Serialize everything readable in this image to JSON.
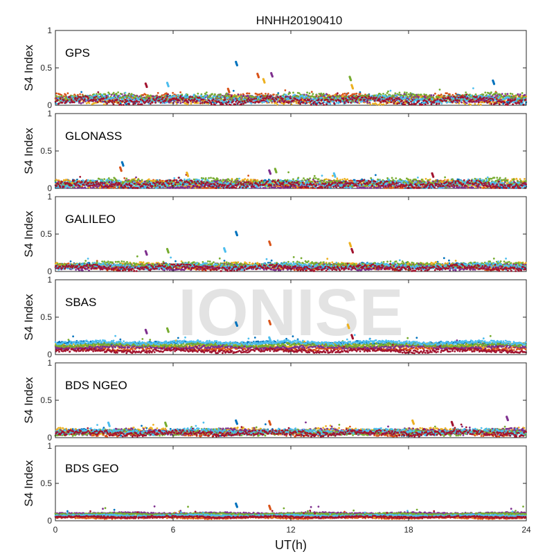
{
  "figure": {
    "title": "HNHH20190410",
    "xlabel": "UT(h)",
    "ylabel": "S4 Index",
    "watermark": "IONISE"
  },
  "chart_data": {
    "type": "scatter",
    "title": "HNHH20190410",
    "xlabel": "UT(h)",
    "ylabel": "S4 Index",
    "xlim": [
      0,
      24
    ],
    "ylim": [
      0,
      1
    ],
    "xticks": [
      0,
      6,
      12,
      18,
      24
    ],
    "yticks": [
      0,
      0.5,
      1
    ],
    "grid": false,
    "colors": [
      "#0072BD",
      "#D95319",
      "#EDB120",
      "#7E2F8E",
      "#77AC30",
      "#4DBEEE",
      "#A2142F"
    ],
    "panels": [
      {
        "label": "GPS",
        "baselines": [
          0.08,
          0.1,
          0.07,
          0.09,
          0.11,
          0.08,
          0.06
        ],
        "noise": 0.04,
        "spikes": [
          [
            9.2,
            0.58
          ],
          [
            10.3,
            0.42
          ],
          [
            10.6,
            0.35
          ],
          [
            11.0,
            0.43
          ],
          [
            15.0,
            0.38
          ],
          [
            5.7,
            0.3
          ],
          [
            4.6,
            0.29
          ],
          [
            22.3,
            0.33
          ],
          [
            8.8,
            0.22
          ],
          [
            15.1,
            0.27
          ]
        ]
      },
      {
        "label": "GLONASS",
        "baselines": [
          0.06,
          0.05,
          0.07,
          0.05,
          0.08,
          0.06,
          0.05
        ],
        "noise": 0.04,
        "spikes": [
          [
            3.4,
            0.35
          ],
          [
            3.3,
            0.28
          ],
          [
            6.7,
            0.21
          ],
          [
            10.9,
            0.24
          ],
          [
            11.2,
            0.26
          ],
          [
            14.2,
            0.2
          ],
          [
            19.2,
            0.2
          ]
        ]
      },
      {
        "label": "GALILEO",
        "baselines": [
          0.07,
          0.06,
          0.08,
          0.06,
          0.09,
          0.07,
          0.05
        ],
        "noise": 0.03,
        "spikes": [
          [
            9.2,
            0.53
          ],
          [
            10.9,
            0.4
          ],
          [
            15.0,
            0.38
          ],
          [
            4.6,
            0.27
          ],
          [
            5.7,
            0.3
          ],
          [
            8.6,
            0.31
          ],
          [
            15.1,
            0.3
          ]
        ]
      },
      {
        "label": "SBAS",
        "baselines": [
          0.15,
          0.08,
          0.12,
          0.1,
          0.13,
          0.16,
          0.05
        ],
        "noise": 0.02,
        "spikes": [
          [
            9.2,
            0.43
          ],
          [
            10.9,
            0.45
          ],
          [
            14.9,
            0.4
          ],
          [
            4.6,
            0.33
          ],
          [
            5.7,
            0.35
          ],
          [
            10.9,
            0.23
          ],
          [
            15.1,
            0.26
          ]
        ]
      },
      {
        "label": "BDS NGEO",
        "baselines": [
          0.07,
          0.06,
          0.09,
          0.08,
          0.07,
          0.08,
          0.06
        ],
        "noise": 0.03,
        "spikes": [
          [
            9.2,
            0.23
          ],
          [
            10.9,
            0.22
          ],
          [
            18.2,
            0.23
          ],
          [
            23.0,
            0.28
          ],
          [
            5.6,
            0.2
          ],
          [
            2.7,
            0.2
          ],
          [
            20.2,
            0.21
          ]
        ]
      },
      {
        "label": "BDS GEO",
        "baselines": [
          0.07,
          0.04,
          0.06,
          0.1,
          0.09,
          0.07,
          0.05
        ],
        "noise": 0.01,
        "spikes": [
          [
            9.2,
            0.23
          ],
          [
            10.9,
            0.2
          ]
        ]
      }
    ]
  }
}
